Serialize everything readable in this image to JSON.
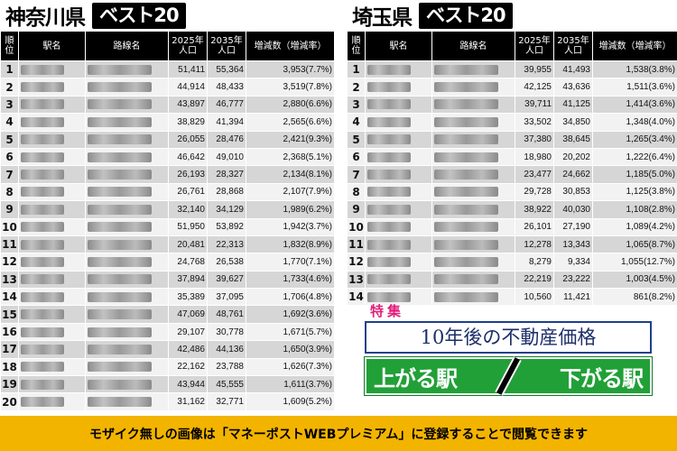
{
  "left": {
    "pref": "神奈川県",
    "best": "ベスト20",
    "headers": {
      "rank": "順位",
      "station": "駅名",
      "line": "路線名",
      "y2025": "2025年 人口",
      "y2035": "2035年 人口",
      "change": "増減数（増減率）"
    },
    "rows": [
      {
        "rank": "1",
        "p2025": "51,411",
        "p2035": "55,364",
        "change": "3,953(7.7%)"
      },
      {
        "rank": "2",
        "p2025": "44,914",
        "p2035": "48,433",
        "change": "3,519(7.8%)"
      },
      {
        "rank": "3",
        "p2025": "43,897",
        "p2035": "46,777",
        "change": "2,880(6.6%)"
      },
      {
        "rank": "4",
        "p2025": "38,829",
        "p2035": "41,394",
        "change": "2,565(6.6%)"
      },
      {
        "rank": "5",
        "p2025": "26,055",
        "p2035": "28,476",
        "change": "2,421(9.3%)"
      },
      {
        "rank": "6",
        "p2025": "46,642",
        "p2035": "49,010",
        "change": "2,368(5.1%)"
      },
      {
        "rank": "7",
        "p2025": "26,193",
        "p2035": "28,327",
        "change": "2,134(8.1%)"
      },
      {
        "rank": "8",
        "p2025": "26,761",
        "p2035": "28,868",
        "change": "2,107(7.9%)"
      },
      {
        "rank": "9",
        "p2025": "32,140",
        "p2035": "34,129",
        "change": "1,989(6.2%)"
      },
      {
        "rank": "10",
        "p2025": "51,950",
        "p2035": "53,892",
        "change": "1,942(3.7%)"
      },
      {
        "rank": "11",
        "p2025": "20,481",
        "p2035": "22,313",
        "change": "1,832(8.9%)"
      },
      {
        "rank": "12",
        "p2025": "24,768",
        "p2035": "26,538",
        "change": "1,770(7.1%)"
      },
      {
        "rank": "13",
        "p2025": "37,894",
        "p2035": "39,627",
        "change": "1,733(4.6%)"
      },
      {
        "rank": "14",
        "p2025": "35,389",
        "p2035": "37,095",
        "change": "1,706(4.8%)"
      },
      {
        "rank": "15",
        "p2025": "47,069",
        "p2035": "48,761",
        "change": "1,692(3.6%)"
      },
      {
        "rank": "16",
        "p2025": "29,107",
        "p2035": "30,778",
        "change": "1,671(5.7%)"
      },
      {
        "rank": "17",
        "p2025": "42,486",
        "p2035": "44,136",
        "change": "1,650(3.9%)"
      },
      {
        "rank": "18",
        "p2025": "22,162",
        "p2035": "23,788",
        "change": "1,626(7.3%)"
      },
      {
        "rank": "19",
        "p2025": "43,944",
        "p2035": "45,555",
        "change": "1,611(3.7%)"
      },
      {
        "rank": "20",
        "p2025": "31,162",
        "p2035": "32,771",
        "change": "1,609(5.2%)"
      }
    ]
  },
  "right": {
    "pref": "埼玉県",
    "best": "ベスト20",
    "headers": {
      "rank": "順位",
      "station": "駅名",
      "line": "路線名",
      "y2025": "2025年 人口",
      "y2035": "2035年 人口",
      "change": "増減数（増減率）"
    },
    "rows": [
      {
        "rank": "1",
        "p2025": "39,955",
        "p2035": "41,493",
        "change": "1,538(3.8%)"
      },
      {
        "rank": "2",
        "p2025": "42,125",
        "p2035": "43,636",
        "change": "1,511(3.6%)"
      },
      {
        "rank": "3",
        "p2025": "39,711",
        "p2035": "41,125",
        "change": "1,414(3.6%)"
      },
      {
        "rank": "4",
        "p2025": "33,502",
        "p2035": "34,850",
        "change": "1,348(4.0%)"
      },
      {
        "rank": "5",
        "p2025": "37,380",
        "p2035": "38,645",
        "change": "1,265(3.4%)"
      },
      {
        "rank": "6",
        "p2025": "18,980",
        "p2035": "20,202",
        "change": "1,222(6.4%)"
      },
      {
        "rank": "7",
        "p2025": "23,477",
        "p2035": "24,662",
        "change": "1,185(5.0%)"
      },
      {
        "rank": "8",
        "p2025": "29,728",
        "p2035": "30,853",
        "change": "1,125(3.8%)"
      },
      {
        "rank": "9",
        "p2025": "38,922",
        "p2035": "40,030",
        "change": "1,108(2.8%)"
      },
      {
        "rank": "10",
        "p2025": "26,101",
        "p2035": "27,190",
        "change": "1,089(4.2%)"
      },
      {
        "rank": "11",
        "p2025": "12,278",
        "p2035": "13,343",
        "change": "1,065(8.7%)"
      },
      {
        "rank": "12",
        "p2025": "8,279",
        "p2035": "9,334",
        "change": "1,055(12.7%)"
      },
      {
        "rank": "13",
        "p2025": "22,219",
        "p2035": "23,222",
        "change": "1,003(4.5%)"
      },
      {
        "rank": "14",
        "p2025": "10,560",
        "p2035": "11,421",
        "change": "861(8.2%)"
      }
    ]
  },
  "overlay": {
    "tokushu": "特集",
    "subtitle": "10年後の不動産価格",
    "rise": "上がる駅",
    "fall": "下がる駅"
  },
  "footer": {
    "text": "モザイク無しの画像は「マネーポストWEBプレミアム」に登録することで閲覧できます"
  },
  "colors": {
    "header_bg": "#000000",
    "banner_green": "#22a038",
    "subtitle_navy": "#1d2f6a",
    "tokushu_pink": "#e0207a",
    "footer_yellow": "#f3b400"
  }
}
